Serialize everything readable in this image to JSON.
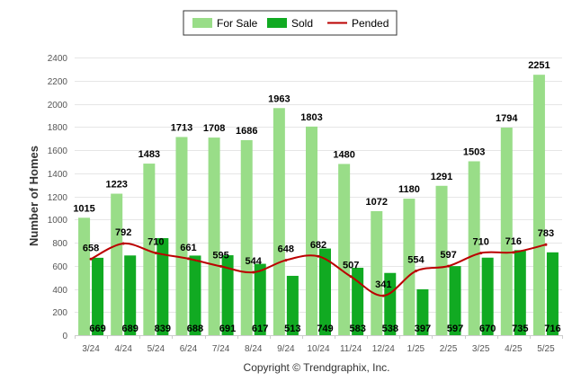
{
  "chart_data": {
    "type": "bar",
    "categories": [
      "3/24",
      "4/24",
      "5/24",
      "6/24",
      "7/24",
      "8/24",
      "9/24",
      "10/24",
      "11/24",
      "12/24",
      "1/25",
      "2/25",
      "3/25",
      "4/25",
      "5/25"
    ],
    "series": [
      {
        "name": "For Sale",
        "kind": "bar",
        "color": "#99dd88",
        "values": [
          1015,
          1223,
          1483,
          1713,
          1708,
          1686,
          1963,
          1803,
          1480,
          1072,
          1180,
          1291,
          1503,
          1794,
          2251
        ]
      },
      {
        "name": "Sold",
        "kind": "bar",
        "color": "#11aa22",
        "values": [
          669,
          689,
          839,
          688,
          691,
          617,
          513,
          749,
          583,
          538,
          397,
          597,
          670,
          735,
          716
        ]
      },
      {
        "name": "Pended",
        "kind": "line",
        "color": "#bb0000",
        "values": [
          658,
          792,
          710,
          661,
          595,
          544,
          648,
          682,
          507,
          341,
          554,
          597,
          710,
          716,
          783
        ]
      }
    ],
    "ylabel": "Number of Homes",
    "ylim": [
      0,
      2400
    ],
    "yticks": [
      0,
      200,
      400,
      600,
      800,
      1000,
      1200,
      1400,
      1600,
      1800,
      2000,
      2200,
      2400
    ],
    "grid": true,
    "legend": "top-center"
  },
  "footer": {
    "copyright": "Copyright © Trendgraphix, Inc."
  }
}
